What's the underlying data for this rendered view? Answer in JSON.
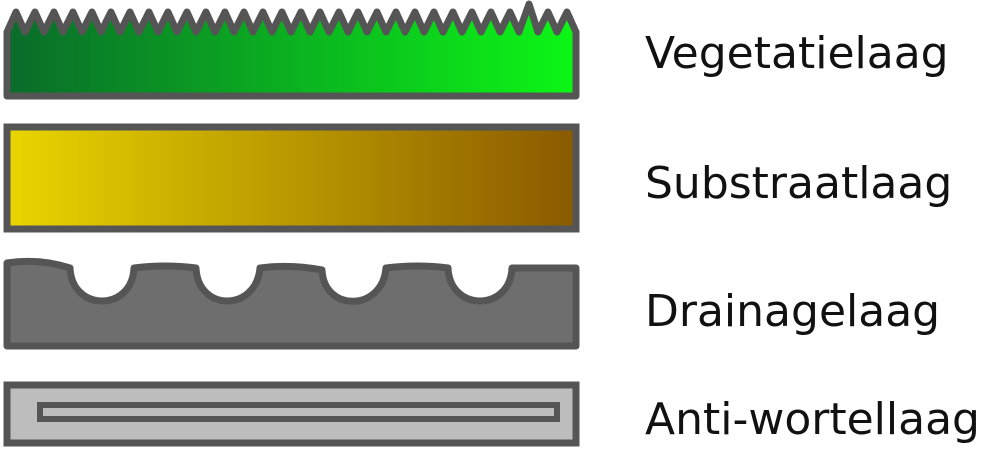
{
  "layers": [
    {
      "label": "Vegetatielaag",
      "fill_start": "#0a6b2a",
      "fill_end": "#0cf716"
    },
    {
      "label": "Substraatlaag",
      "fill_start": "#e8d600",
      "fill_end": "#8a5a00"
    },
    {
      "label": "Drainagelaag",
      "fill": "#6e6e6e"
    },
    {
      "label": "Anti-wortellaag",
      "fill": "#bdbdbd"
    }
  ],
  "colors": {
    "outline": "#555555",
    "text": "#111111"
  }
}
